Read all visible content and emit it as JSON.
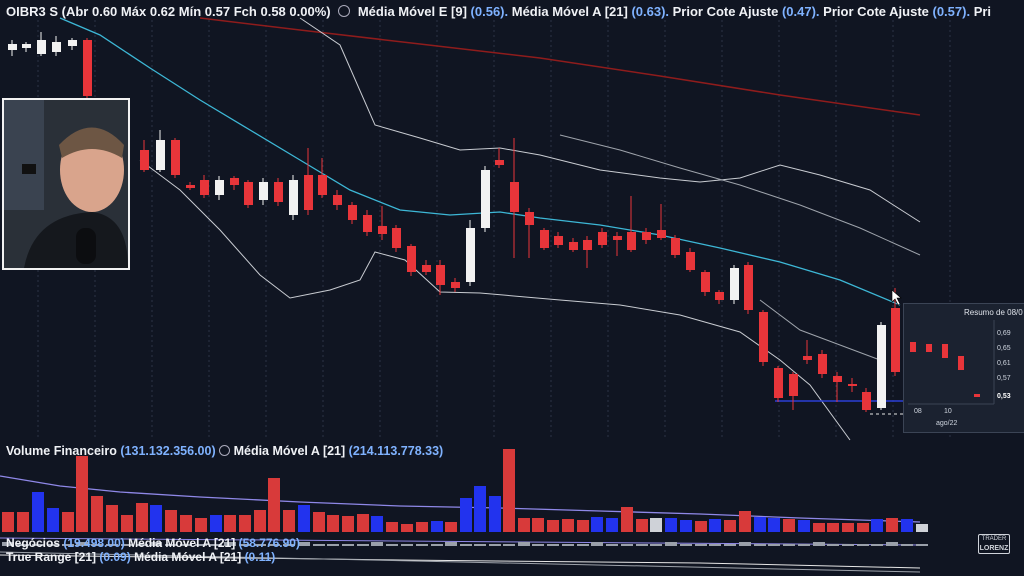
{
  "header": {
    "ticker": "OIBR3 S",
    "abr_label": "(Abr",
    "abr": "0.60",
    "max_label": "Máx",
    "max": "0.62",
    "min_label": "Mín",
    "min": "0.57",
    "fch_label": "Fch",
    "fch": "0.58 0.00%)",
    "indicators": [
      {
        "label": "Média Móvel E [9]",
        "value": "(0.56)."
      },
      {
        "label": "Média Móvel A [21]",
        "value": "(0.63)."
      },
      {
        "label": "Prior Cote Ajuste",
        "value": "(0.47)."
      },
      {
        "label": "Prior Cote Ajuste",
        "value": "(0.57)."
      },
      {
        "label": "Pri",
        "value": ""
      }
    ]
  },
  "volume_panel": {
    "label": "Volume Financeiro",
    "value": "(131.132.356.00)",
    "ma_label": "Média Móvel A [21]",
    "ma_value": "(214.113.778.33)"
  },
  "negocios_panel": {
    "label": "Negócios",
    "value": "(19.498.00)",
    "ma_label": "Média Móvel A [21]",
    "ma_value": "(58.776.90)"
  },
  "true_range_panel": {
    "label": "True Range [21]",
    "value": "(0.09)",
    "ma_label": "Média Móvel A [21]",
    "ma_value": "(0.11)"
  },
  "popup": {
    "title": "Resumo de 08/0",
    "y_labels": [
      "0,69",
      "0,65",
      "0,61",
      "0,57",
      "0,53"
    ],
    "x_labels": [
      "08",
      "10"
    ],
    "month_label": "ago/22"
  },
  "logo": {
    "line1": "TRADER",
    "line2": "LORENZ"
  },
  "colors": {
    "up": "#f2f2f2",
    "down": "#e8353a",
    "vol_up": "#2233ee",
    "vol_down": "#d83a3a",
    "ma_cyan": "#3db7d6",
    "ma_red": "#8f1c1c",
    "bands": "#c9ccd2",
    "bg": "#101522"
  }
}
